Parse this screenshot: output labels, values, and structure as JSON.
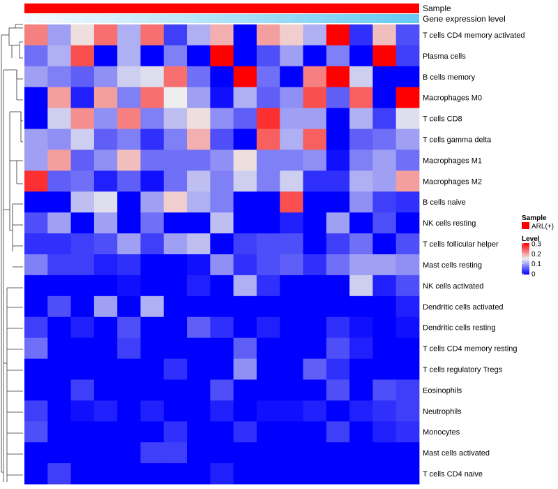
{
  "chart_data": {
    "type": "heatmap",
    "title": "",
    "annotation_tracks": [
      {
        "name": "Sample",
        "kind": "categorical",
        "color": "#ff0000"
      },
      {
        "name": "Gene expression level",
        "kind": "gradient",
        "colors": [
          "#f7fbff",
          "#65c9f2"
        ]
      }
    ],
    "rows": [
      "T cells CD4 memory activated",
      "Plasma cells",
      "B cells memory",
      "Macrophages M0",
      "T cells CD8",
      "T cells gamma delta",
      "Macrophages M1",
      "Macrophages M2",
      "B cells naive",
      "NK cells resting",
      "T cells follicular helper",
      "Mast cells resting",
      "NK cells activated",
      "Dendritic cells activated",
      "Dendritic cells resting",
      "T cells CD4 memory resting",
      "T cells regulatory  Tregs",
      "Eosinophils",
      "Neutrophils",
      "Monocytes",
      "Mast cells activated",
      "T cells CD4 naive"
    ],
    "values": [
      [
        0.22,
        0.1,
        0.16,
        0.23,
        0.11,
        0.23,
        0.04,
        0.11,
        0.19,
        0.0,
        0.2,
        0.17,
        0.11,
        0.3,
        0.03,
        0.18,
        0.05
      ],
      [
        0.07,
        0.11,
        0.25,
        0.0,
        0.11,
        0.0,
        0.08,
        0.0,
        0.3,
        0.0,
        0.05,
        0.1,
        0.0,
        0.08,
        0.0,
        0.3,
        0.04
      ],
      [
        0.1,
        0.08,
        0.06,
        0.09,
        0.13,
        0.14,
        0.23,
        0.07,
        0.0,
        0.3,
        0.07,
        0.0,
        0.22,
        0.3,
        0.13,
        0.0,
        0.0
      ],
      [
        0.0,
        0.2,
        0.02,
        0.2,
        0.08,
        0.23,
        0.15,
        0.1,
        0.01,
        0.11,
        0.06,
        0.09,
        0.25,
        0.06,
        0.24,
        0.0,
        0.3
      ],
      [
        0.0,
        0.13,
        0.21,
        0.09,
        0.22,
        0.08,
        0.12,
        0.16,
        0.09,
        0.06,
        0.27,
        0.1,
        0.1,
        0.0,
        0.11,
        0.04,
        0.14
      ],
      [
        0.1,
        0.09,
        0.13,
        0.06,
        0.08,
        0.03,
        0.08,
        0.19,
        0.05,
        0.0,
        0.24,
        0.11,
        0.24,
        0.0,
        0.06,
        0.07,
        0.1
      ],
      [
        0.1,
        0.2,
        0.06,
        0.09,
        0.18,
        0.07,
        0.07,
        0.07,
        0.09,
        0.16,
        0.08,
        0.08,
        0.09,
        0.01,
        0.08,
        0.1,
        0.07
      ],
      [
        0.27,
        0.06,
        0.07,
        0.02,
        0.06,
        0.01,
        0.07,
        0.12,
        0.08,
        0.13,
        0.08,
        0.13,
        0.03,
        0.03,
        0.11,
        0.1,
        0.2
      ],
      [
        0.0,
        0.0,
        0.12,
        0.14,
        0.0,
        0.1,
        0.17,
        0.11,
        0.08,
        0.0,
        0.0,
        0.25,
        0.0,
        0.0,
        0.09,
        0.04,
        0.03
      ],
      [
        0.05,
        0.1,
        0.0,
        0.1,
        0.0,
        0.07,
        0.0,
        0.0,
        0.12,
        0.0,
        0.0,
        0.02,
        0.0,
        0.1,
        0.0,
        0.05,
        0.0
      ],
      [
        0.03,
        0.03,
        0.04,
        0.05,
        0.1,
        0.04,
        0.1,
        0.12,
        0.0,
        0.04,
        0.05,
        0.05,
        0.0,
        0.04,
        0.07,
        0.0,
        0.05
      ],
      [
        0.08,
        0.04,
        0.04,
        0.02,
        0.03,
        0.0,
        0.0,
        0.01,
        0.09,
        0.03,
        0.05,
        0.06,
        0.03,
        0.07,
        0.1,
        0.1,
        0.09
      ],
      [
        0.0,
        0.0,
        0.0,
        0.0,
        0.01,
        0.0,
        0.0,
        0.02,
        0.0,
        0.11,
        0.03,
        0.0,
        0.0,
        0.0,
        0.13,
        0.02,
        0.05
      ],
      [
        0.0,
        0.05,
        0.0,
        0.1,
        0.0,
        0.11,
        0.0,
        0.0,
        0.0,
        0.0,
        0.0,
        0.0,
        0.0,
        0.0,
        0.0,
        0.0,
        0.02
      ],
      [
        0.04,
        0.0,
        0.02,
        0.0,
        0.05,
        0.0,
        0.0,
        0.06,
        0.03,
        0.0,
        0.02,
        0.0,
        0.0,
        0.03,
        0.01,
        0.0,
        0.01
      ],
      [
        0.07,
        0.0,
        0.0,
        0.0,
        0.04,
        0.0,
        0.0,
        0.0,
        0.0,
        0.06,
        0.0,
        0.0,
        0.0,
        0.05,
        0.02,
        0.0,
        0.0
      ],
      [
        0.0,
        0.0,
        0.0,
        0.0,
        0.0,
        0.0,
        0.03,
        0.0,
        0.0,
        0.09,
        0.0,
        0.0,
        0.06,
        0.03,
        0.0,
        0.0,
        0.0
      ],
      [
        0.0,
        0.0,
        0.04,
        0.0,
        0.0,
        0.0,
        0.0,
        0.0,
        0.05,
        0.0,
        0.0,
        0.0,
        0.0,
        0.05,
        0.0,
        0.05,
        0.04
      ],
      [
        0.04,
        0.0,
        0.01,
        0.02,
        0.0,
        0.02,
        0.0,
        0.0,
        0.02,
        0.0,
        0.01,
        0.01,
        0.02,
        0.0,
        0.02,
        0.03,
        0.04
      ],
      [
        0.05,
        0.0,
        0.0,
        0.0,
        0.0,
        0.0,
        0.03,
        0.0,
        0.0,
        0.03,
        0.0,
        0.0,
        0.0,
        0.04,
        0.0,
        0.02,
        0.03
      ],
      [
        0.0,
        0.0,
        0.0,
        0.0,
        0.0,
        0.04,
        0.04,
        0.0,
        0.0,
        0.0,
        0.0,
        0.0,
        0.0,
        0.0,
        0.0,
        0.0,
        0.0
      ],
      [
        0.0,
        0.04,
        0.0,
        0.0,
        0.0,
        0.0,
        0.0,
        0.0,
        0.02,
        0.0,
        0.0,
        0.0,
        0.0,
        0.0,
        0.0,
        0.0,
        0.0
      ]
    ],
    "color_scale": {
      "min": 0,
      "mid": 0.15,
      "max": 0.3,
      "colors": [
        "#0000ff",
        "#eeeeee",
        "#ff0000"
      ]
    },
    "legend": {
      "position": "right",
      "sample_title": "Sample",
      "sample_label": "ARL(+)",
      "level_title": "Level",
      "ticks": [
        "0.3",
        "0.2",
        "0.1",
        "0"
      ]
    },
    "row_dendrogram": true
  }
}
